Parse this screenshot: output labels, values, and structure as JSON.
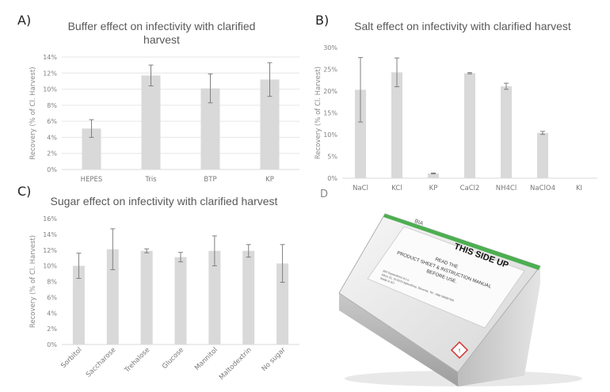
{
  "panels": {
    "a": "A)",
    "b": "B)",
    "c": "C)",
    "d": "D"
  },
  "chart_data": [
    {
      "id": "a",
      "type": "bar",
      "title_lines": [
        "Buffer effect on infectivity with clarified",
        "harvest"
      ],
      "ylabel": "Recovery (% of Cl. Harvest)",
      "xlabel": "",
      "ylim": [
        0,
        14
      ],
      "yticks": [
        0,
        2,
        4,
        6,
        8,
        10,
        12,
        14
      ],
      "tick_labels": [
        "0%",
        "2%",
        "4%",
        "6%",
        "8%",
        "10%",
        "12%",
        "14%"
      ],
      "grid": true,
      "categories": [
        "HEPES",
        "Tris",
        "BTP",
        "KP"
      ],
      "values": [
        5.1,
        11.7,
        10.1,
        11.2
      ],
      "errors": [
        1.1,
        1.3,
        1.8,
        2.1
      ]
    },
    {
      "id": "b",
      "type": "bar",
      "title_lines": [
        "Salt effect on infectivity with clarified harvest"
      ],
      "ylabel": "Recovery (% of Cl. Harvest)",
      "xlabel": "",
      "ylim": [
        0,
        30
      ],
      "yticks": [
        0,
        5,
        10,
        15,
        20,
        25,
        30
      ],
      "tick_labels": [
        "0%",
        "5%",
        "10%",
        "15%",
        "20%",
        "25%",
        "30%"
      ],
      "grid": false,
      "categories": [
        "NaCl",
        "KCl",
        "KP",
        "CaCl2",
        "NH4Cl",
        "NaClO4",
        "KI"
      ],
      "values": [
        20.3,
        24.3,
        1.1,
        24.1,
        21.1,
        10.4,
        0.0
      ],
      "errors": [
        7.4,
        3.3,
        0.1,
        0.15,
        0.7,
        0.35,
        0.0
      ]
    },
    {
      "id": "c",
      "type": "bar",
      "title_lines": [
        "Sugar effect on infectivity with clarified harvest"
      ],
      "ylabel": "Recovery (% of Cl. Harvest)",
      "xlabel": "",
      "ylim": [
        0,
        16
      ],
      "yticks": [
        0,
        2,
        4,
        6,
        8,
        10,
        12,
        14,
        16
      ],
      "tick_labels": [
        "0%",
        "2%",
        "4%",
        "6%",
        "8%",
        "10%",
        "12%",
        "14%",
        "16%"
      ],
      "grid": false,
      "rotate_labels": true,
      "categories": [
        "Sorbitol",
        "Saccharose",
        "Trehalose",
        "Glucose",
        "Mannitol",
        "Maltodextrin",
        "No sugar"
      ],
      "values": [
        10.0,
        12.1,
        11.9,
        11.1,
        11.9,
        11.9,
        10.3
      ],
      "errors": [
        1.6,
        2.6,
        0.25,
        0.6,
        1.9,
        0.8,
        2.4
      ]
    }
  ],
  "product": {
    "brand": "BIA",
    "side_label": "THIS SIDE UP",
    "manual_lines": [
      "READ THE",
      "PRODUCT SHEET & INSTRUCTION MANUAL",
      "BEFORE USE."
    ],
    "address_lines": [
      "BIA Separations d.o.o.",
      "Mirce 21, SI-5270 Ajdovščina, Slovenia, Tel: +386 59699 500",
      "Made in EU"
    ]
  },
  "colors": {
    "bar": "#d9d9d9",
    "error_bar": "#7f7f7f",
    "axis": "#d9d9d9",
    "grid": "#e6e6e6",
    "box_stripe": "#4caf50"
  }
}
